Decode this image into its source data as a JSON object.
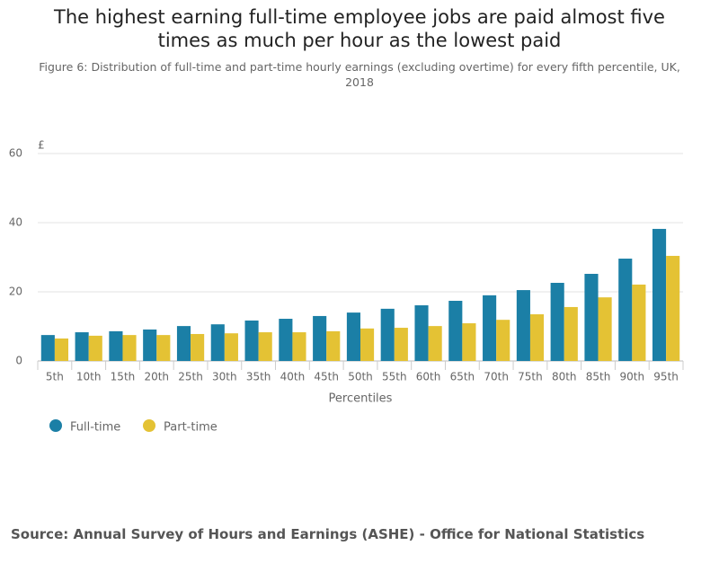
{
  "chart_data": {
    "type": "bar",
    "title": "The highest earning full-time employee jobs are paid almost five times as much per hour as the lowest paid",
    "subtitle": "Figure 6: Distribution of full-time and part-time hourly earnings (excluding overtime) for every fifth percentile, UK, 2018",
    "y_unit": "£",
    "x_label": "Percentiles",
    "categories": [
      "5th",
      "10th",
      "15th",
      "20th",
      "25th",
      "30th",
      "35th",
      "40th",
      "45th",
      "50th",
      "55th",
      "60th",
      "65th",
      "70th",
      "75th",
      "80th",
      "85th",
      "90th",
      "95th"
    ],
    "series": [
      {
        "name": "Full-time",
        "color": "#1b7fa6",
        "values": [
          7.5,
          8.3,
          8.6,
          9.1,
          10.1,
          10.6,
          11.7,
          12.2,
          13.0,
          14.0,
          15.1,
          16.1,
          17.4,
          19.0,
          20.5,
          22.6,
          25.2,
          29.6,
          38.2
        ]
      },
      {
        "name": "Part-time",
        "color": "#e4c234",
        "values": [
          6.5,
          7.3,
          7.5,
          7.5,
          7.8,
          8.0,
          8.3,
          8.3,
          8.6,
          9.4,
          9.6,
          10.1,
          10.9,
          11.9,
          13.5,
          15.6,
          18.4,
          22.1,
          30.4
        ]
      }
    ],
    "ylim": [
      0,
      60
    ],
    "yticks": [
      0,
      20,
      40,
      60
    ],
    "grid": true,
    "source": "Source: Annual Survey of Hours and Earnings (ASHE) - Office for National Statistics"
  }
}
